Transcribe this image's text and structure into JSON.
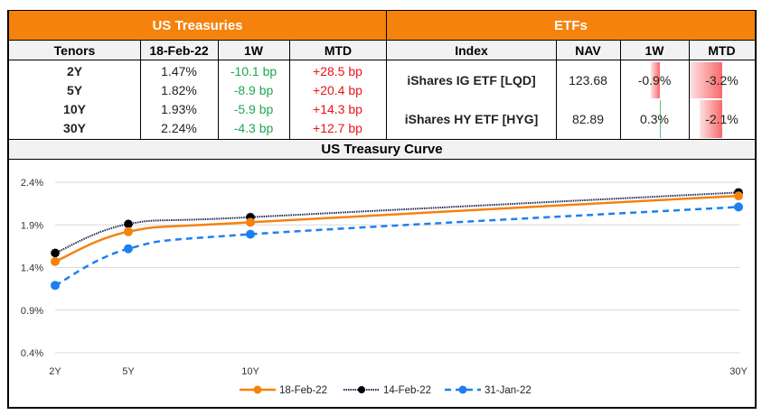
{
  "treasuries": {
    "title": "US Treasuries",
    "headers": [
      "Tenors",
      "18-Feb-22",
      "1W",
      "MTD"
    ],
    "rows": [
      {
        "tenor": "2Y",
        "yield": "1.47%",
        "w1": "-10.1 bp",
        "mtd": "+28.5 bp"
      },
      {
        "tenor": "5Y",
        "yield": "1.82%",
        "w1": "-8.9 bp",
        "mtd": "+20.4 bp"
      },
      {
        "tenor": "10Y",
        "yield": "1.93%",
        "w1": "-5.9 bp",
        "mtd": "+14.3 bp"
      },
      {
        "tenor": "30Y",
        "yield": "2.24%",
        "w1": "-4.3 bp",
        "mtd": "+12.7 bp"
      }
    ]
  },
  "etfs": {
    "title": "ETFs",
    "headers": [
      "Index",
      "NAV",
      "1W",
      "MTD"
    ],
    "rows": [
      {
        "index": "iShares IG ETF [LQD]",
        "nav": "123.68",
        "w1": "-0.9%",
        "mtd": "-3.2%",
        "w1_value": -0.9,
        "mtd_value": -3.2
      },
      {
        "index": "iShares HY ETF [HYG]",
        "nav": "82.89",
        "w1": "0.3%",
        "mtd": "-2.1%",
        "w1_value": 0.3,
        "mtd_value": -2.1
      }
    ],
    "colors": {
      "negative_bar": "#f8696b",
      "positive_bar": "#63be7b"
    }
  },
  "chart_title": "US Treasury Curve",
  "chart_data": {
    "type": "line",
    "title": "US Treasury Curve",
    "xlabel": "",
    "ylabel": "",
    "x": [
      2,
      5,
      10,
      30
    ],
    "x_tick_labels": [
      "2Y",
      "5Y",
      "10Y",
      "30Y"
    ],
    "xlim": [
      2,
      30
    ],
    "y_ticks": [
      0.4,
      0.9,
      1.4,
      1.9,
      2.4
    ],
    "y_tick_labels": [
      "0.4%",
      "0.9%",
      "1.4%",
      "1.9%",
      "2.4%"
    ],
    "ylim": [
      0.4,
      2.4
    ],
    "grid": true,
    "legend": "bottom",
    "series": [
      {
        "name": "18-Feb-22",
        "values": [
          1.47,
          1.82,
          1.93,
          2.24
        ],
        "color": "#f5820d",
        "style": "solid",
        "marker": "circle"
      },
      {
        "name": "14-Feb-22",
        "values": [
          1.57,
          1.91,
          1.99,
          2.28
        ],
        "color": "#1f2a5a",
        "marker_color": "#000000",
        "style": "dotted",
        "marker": "star"
      },
      {
        "name": "31-Jan-22",
        "values": [
          1.19,
          1.62,
          1.79,
          2.11
        ],
        "color": "#1e7ff0",
        "style": "dashed",
        "marker": "circle"
      }
    ]
  }
}
